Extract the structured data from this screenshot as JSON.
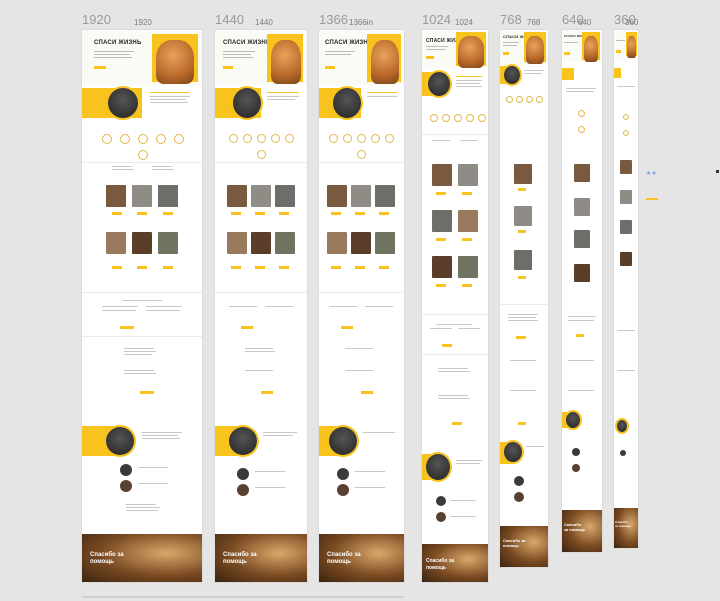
{
  "frame_labels": [
    {
      "big": "1920",
      "small": "1920"
    },
    {
      "big": "1440",
      "small": "1440"
    },
    {
      "big": "1366",
      "small": "1366in"
    },
    {
      "big": "1024",
      "small": "1024"
    },
    {
      "big": "768",
      "small": "768"
    },
    {
      "big": "640",
      "small": "640"
    },
    {
      "big": "360",
      "small": "360"
    }
  ],
  "hero_title": "СПАСИ ЖИЗНЬ",
  "footer_text": "Спасибо за помощь",
  "colors": {
    "accent": "#f7c31c",
    "canvas": "#e5e5e5",
    "frame": "#ffffff"
  }
}
